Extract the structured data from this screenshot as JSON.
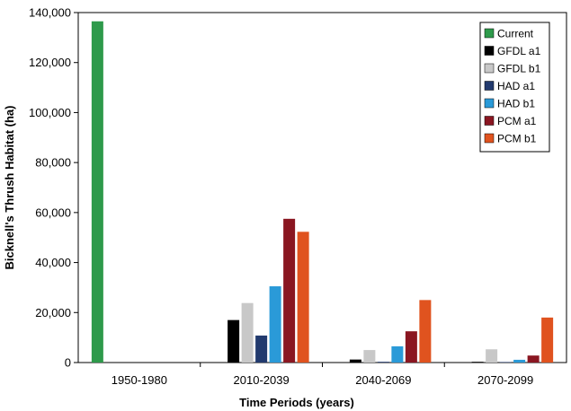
{
  "chart_data": {
    "type": "bar",
    "categories": [
      "1950-1980",
      "2010-2039",
      "2040-2069",
      "2070-2099"
    ],
    "xlabel": "Time Periods (years)",
    "ylabel": "Bicknell's Thrush Habitat (ha)",
    "ylim": [
      0,
      140000
    ],
    "yticks": [
      "0",
      "20,000",
      "40,000",
      "60,000",
      "80,000",
      "100,000",
      "120,000",
      "140,000"
    ],
    "grid": false,
    "legend_position": "top-right",
    "series": [
      {
        "name": "Current",
        "color": "#2e9a4b",
        "values": [
          136500,
          0,
          0,
          0
        ]
      },
      {
        "name": "GFDL a1",
        "color": "#000000",
        "values": [
          0,
          17000,
          1200,
          300
        ]
      },
      {
        "name": "GFDL b1",
        "color": "#c8c8c8",
        "values": [
          0,
          23800,
          5000,
          5300
        ]
      },
      {
        "name": "HAD a1",
        "color": "#223a6e",
        "values": [
          0,
          10800,
          300,
          200
        ]
      },
      {
        "name": "HAD b1",
        "color": "#2a9ad8",
        "values": [
          0,
          30500,
          6500,
          1100
        ]
      },
      {
        "name": "PCM a1",
        "color": "#8a1621",
        "values": [
          0,
          57500,
          12500,
          2800
        ]
      },
      {
        "name": "PCM b1",
        "color": "#e0531f",
        "values": [
          0,
          52300,
          25000,
          18000
        ]
      }
    ]
  }
}
